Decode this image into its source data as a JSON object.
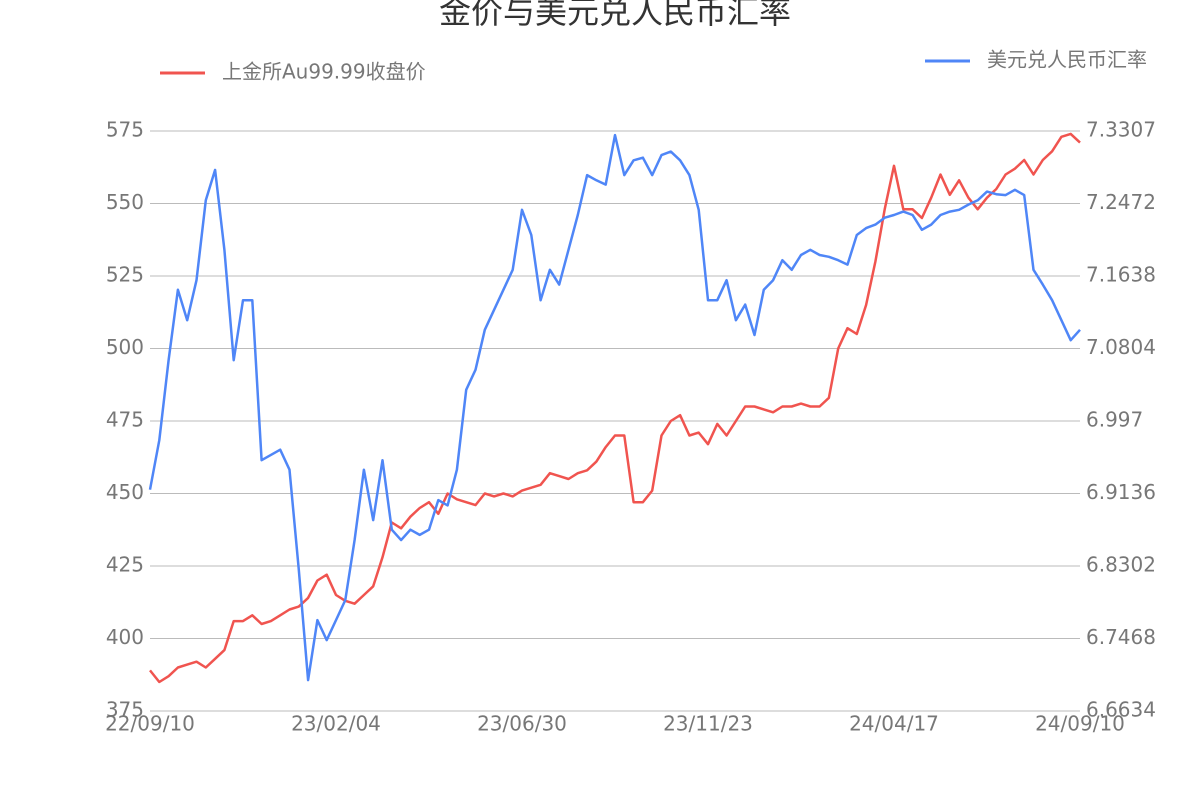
{
  "chart_data": {
    "type": "line",
    "title": "金价与美元兑人民币汇率",
    "categories": [
      "22/09/10",
      null,
      null,
      null,
      null,
      null,
      null,
      null,
      null,
      null,
      null,
      null,
      null,
      null,
      null,
      null,
      null,
      null,
      null,
      null,
      "23/02/04",
      null,
      null,
      null,
      null,
      null,
      null,
      null,
      null,
      null,
      null,
      null,
      null,
      null,
      null,
      null,
      null,
      null,
      null,
      null,
      "23/06/30",
      null,
      null,
      null,
      null,
      null,
      null,
      null,
      null,
      null,
      null,
      null,
      null,
      null,
      null,
      null,
      null,
      null,
      null,
      null,
      "23/11/23",
      null,
      null,
      null,
      null,
      null,
      null,
      null,
      null,
      null,
      null,
      null,
      null,
      null,
      null,
      null,
      null,
      null,
      null,
      null,
      "24/04/17",
      null,
      null,
      null,
      null,
      null,
      null,
      null,
      null,
      null,
      null,
      null,
      null,
      null,
      null,
      null,
      null,
      null,
      null,
      null,
      "24/09/10"
    ],
    "series": [
      {
        "name": "上金所Au99.99收盘价",
        "color": "#f0544f",
        "axis": "y",
        "values": [
          389,
          385,
          387,
          390,
          391,
          392,
          390,
          393,
          396,
          406,
          406,
          408,
          405,
          406,
          408,
          410,
          411,
          414,
          420,
          422,
          415,
          413,
          412,
          415,
          418,
          428,
          440,
          438,
          442,
          445,
          447,
          443,
          450,
          448,
          447,
          446,
          450,
          449,
          450,
          449,
          451,
          452,
          453,
          457,
          456,
          455,
          457,
          458,
          461,
          466,
          470,
          470,
          447,
          447,
          451,
          470,
          475,
          477,
          470,
          471,
          467,
          474,
          470,
          475,
          480,
          480,
          479,
          478,
          480,
          480,
          481,
          480,
          480,
          483,
          500,
          507,
          505,
          515,
          530,
          548,
          563,
          548,
          548,
          545,
          552,
          560,
          553,
          558,
          552,
          548,
          552,
          555,
          560,
          562,
          565,
          560,
          565,
          568,
          573,
          574,
          571
        ]
      },
      {
        "name": "美元兑人民币汇率",
        "color": "#4f86f7",
        "axis": "y2",
        "values": [
          6.918,
          6.975,
          7.067,
          7.148,
          7.113,
          7.159,
          7.251,
          7.286,
          7.194,
          7.067,
          7.136,
          7.136,
          6.952,
          6.958,
          6.964,
          6.941,
          6.826,
          6.699,
          6.768,
          6.745,
          6.768,
          6.791,
          6.86,
          6.941,
          6.883,
          6.952,
          6.872,
          6.86,
          6.872,
          6.866,
          6.872,
          6.906,
          6.9,
          6.941,
          7.033,
          7.056,
          7.102,
          7.125,
          7.148,
          7.171,
          7.24,
          7.211,
          7.136,
          7.171,
          7.154,
          7.194,
          7.234,
          7.28,
          7.274,
          7.269,
          7.326,
          7.28,
          7.297,
          7.3,
          7.28,
          7.303,
          7.307,
          7.297,
          7.28,
          7.24,
          7.136,
          7.136,
          7.159,
          7.113,
          7.131,
          7.096,
          7.148,
          7.159,
          7.182,
          7.171,
          7.188,
          7.194,
          7.188,
          7.186,
          7.182,
          7.177,
          7.211,
          7.219,
          7.223,
          7.231,
          7.234,
          7.238,
          7.234,
          7.217,
          7.223,
          7.234,
          7.238,
          7.24,
          7.246,
          7.251,
          7.261,
          7.258,
          7.257,
          7.263,
          7.257,
          7.171,
          7.154,
          7.136,
          7.113,
          7.09,
          7.102
        ]
      }
    ],
    "ylim": [
      375,
      575
    ],
    "yticks": [
      375,
      400,
      425,
      450,
      475,
      500,
      525,
      550,
      575
    ],
    "y2lim": [
      6.6634,
      7.3307
    ],
    "y2ticks": [
      6.6634,
      6.7468,
      6.8302,
      6.9136,
      6.997,
      7.0804,
      7.1638,
      7.2472,
      7.3307
    ],
    "grid": true
  }
}
